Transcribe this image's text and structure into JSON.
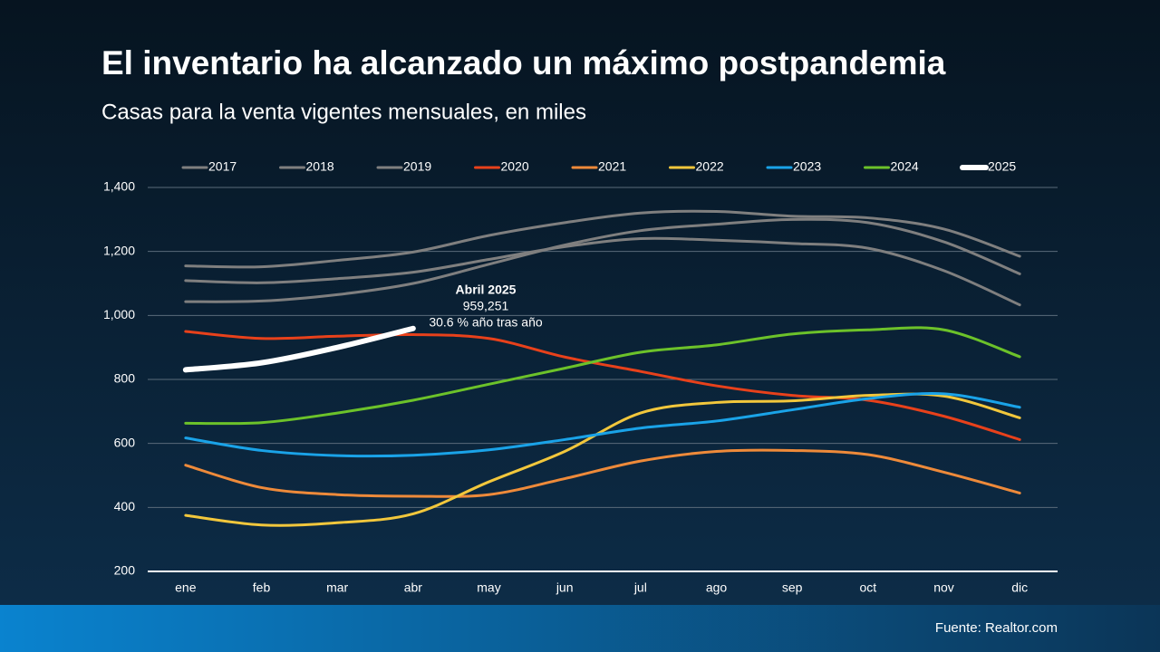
{
  "chart_data": {
    "type": "line",
    "title": "El inventario ha alcanzado un máximo postpandemia",
    "subtitle": "Casas para la venta vigentes mensuales, en miles",
    "source": "Fuente: Realtor.com",
    "annotation": {
      "title": "Abril 2025",
      "value": "959,251",
      "text": "30.6 % año tras año"
    },
    "categories": [
      "ene",
      "feb",
      "mar",
      "abr",
      "may",
      "jun",
      "jul",
      "ago",
      "sep",
      "oct",
      "nov",
      "dic"
    ],
    "ylim": [
      200,
      1400
    ],
    "yticks": [
      {
        "value": 200,
        "label": "200"
      },
      {
        "value": 400,
        "label": "400"
      },
      {
        "value": 600,
        "label": "600"
      },
      {
        "value": 800,
        "label": "800"
      },
      {
        "value": 1000,
        "label": "1,000"
      },
      {
        "value": 1200,
        "label": "1,200"
      },
      {
        "value": 1400,
        "label": "1,400"
      }
    ],
    "grid": true,
    "legend": "top",
    "series": [
      {
        "name": "2017",
        "color": "#7f7f7f",
        "width": 3,
        "values": [
          1155,
          1152,
          1172,
          1198,
          1250,
          1290,
          1320,
          1325,
          1310,
          1305,
          1270,
          1185
        ]
      },
      {
        "name": "2018",
        "color": "#7f7f7f",
        "width": 3,
        "values": [
          1109,
          1102,
          1115,
          1135,
          1175,
          1215,
          1240,
          1235,
          1225,
          1210,
          1140,
          1033
        ]
      },
      {
        "name": "2019",
        "color": "#7f7f7f",
        "width": 3,
        "values": [
          1043,
          1045,
          1065,
          1100,
          1160,
          1220,
          1265,
          1285,
          1300,
          1290,
          1230,
          1130
        ]
      },
      {
        "name": "2020",
        "color": "#e8411b",
        "width": 3,
        "values": [
          950,
          928,
          935,
          940,
          928,
          870,
          825,
          780,
          750,
          735,
          685,
          612
        ]
      },
      {
        "name": "2021",
        "color": "#ee8a3a",
        "width": 3,
        "values": [
          532,
          462,
          440,
          435,
          440,
          490,
          545,
          575,
          578,
          565,
          510,
          445
        ]
      },
      {
        "name": "2022",
        "color": "#f2c73c",
        "width": 3,
        "values": [
          375,
          345,
          352,
          380,
          480,
          575,
          695,
          728,
          733,
          750,
          748,
          680
        ]
      },
      {
        "name": "2023",
        "color": "#1aa3e8",
        "width": 3,
        "values": [
          617,
          578,
          562,
          563,
          580,
          612,
          648,
          670,
          705,
          740,
          755,
          713
        ]
      },
      {
        "name": "2024",
        "color": "#6cc22a",
        "width": 3,
        "values": [
          663,
          665,
          695,
          735,
          785,
          835,
          885,
          908,
          942,
          955,
          955,
          871
        ]
      },
      {
        "name": "2025",
        "color": "#ffffff",
        "width": 6,
        "values": [
          830,
          852,
          900,
          959.251,
          null,
          null,
          null,
          null,
          null,
          null,
          null,
          null
        ]
      }
    ]
  }
}
